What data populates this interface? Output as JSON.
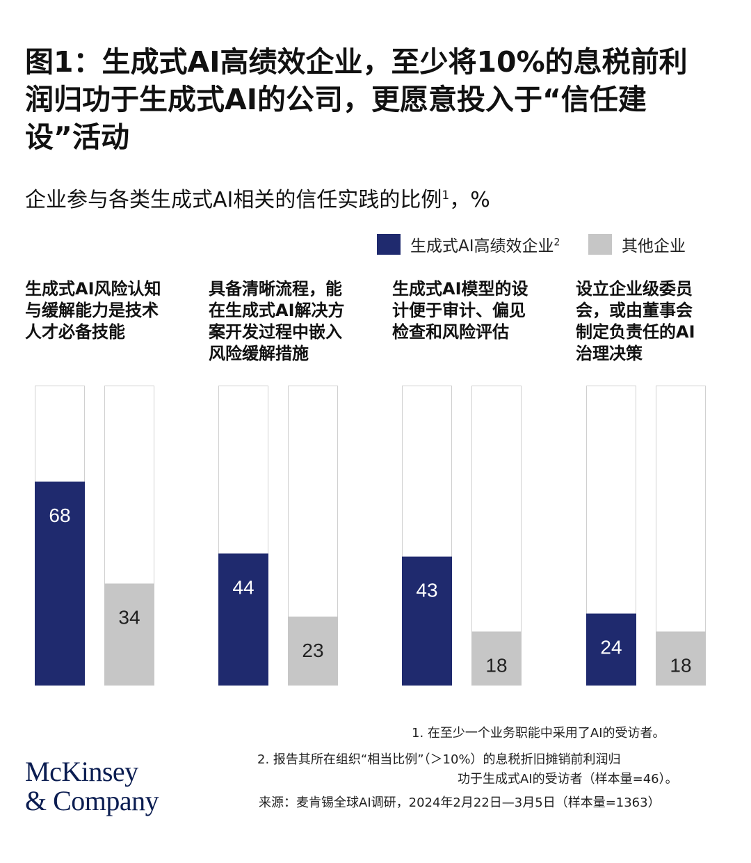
{
  "title_lines": [
    "图1：生成式AI高绩效企业，至少将10%的息税前利",
    "润归功于生成式AI的公司，更愿意投入于“信任建",
    "设”活动"
  ],
  "subtitle": {
    "text": "企业参与各类生成式AI相关的信任实践的比例",
    "sup": "1",
    "unit_suffix": "，%"
  },
  "legend": [
    {
      "label": "生成式AI高绩效企业",
      "sup": "2",
      "color": "#1f2a6e"
    },
    {
      "label": "其他企业",
      "sup": "",
      "color": "#c6c6c6"
    }
  ],
  "chart_data": {
    "type": "bar",
    "unit": "%",
    "ylim": [
      0,
      100
    ],
    "categories": [
      [
        "生成式AI风险认知",
        "与缓解能力是技术",
        "人才必备技能"
      ],
      [
        "具备清晰流程，能",
        "在生成式AI解决方",
        "案开发过程中嵌入",
        "风险缓解措施"
      ],
      [
        "生成式AI模型的设",
        "计便于审计、偏见",
        "检查和风险评估"
      ],
      [
        "设立企业级委员",
        "会，或由董事会",
        "制定负责任的AI",
        "治理决策"
      ]
    ],
    "series": [
      {
        "name": "生成式AI高绩效企业",
        "color": "#1f2a6e",
        "label_color": "#ffffff",
        "values": [
          68,
          44,
          43,
          24
        ]
      },
      {
        "name": "其他企业",
        "color": "#c6c6c6",
        "label_color": "#222222",
        "values": [
          34,
          23,
          18,
          18
        ]
      }
    ]
  },
  "footnotes": {
    "note1": "1.   在至少一个业务职能中采用了AI的受访者。",
    "note2_line1": "2.   报告其所在组织“相当比例”（＞10%）的息税折旧摊销前利润归",
    "note2_line2": "功于生成式AI的受访者（样本量=46）。",
    "source": "来源：麦肯锡全球AI调研，2024年2月22日—3月5日（样本量=1363）"
  },
  "logo": {
    "line1": "McKinsey",
    "line2": "& Company"
  }
}
